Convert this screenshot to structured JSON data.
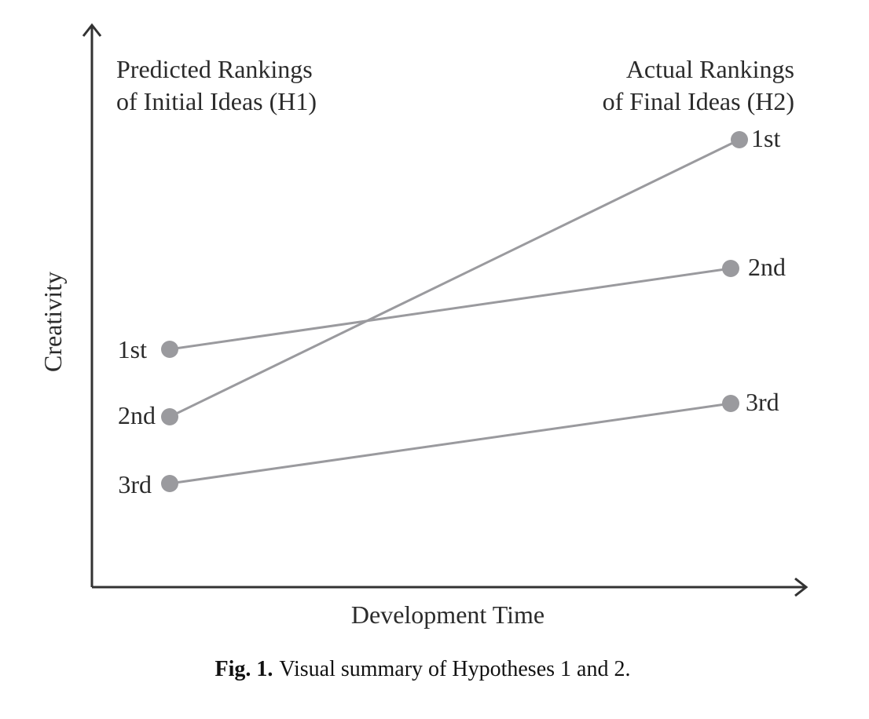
{
  "axes": {
    "y_label": "Creativity",
    "x_label": "Development Time"
  },
  "headers": {
    "left": [
      "Predicted Rankings",
      "of Initial Ideas (H1)"
    ],
    "right": [
      "Actual Rankings",
      "of Final Ideas (H2)"
    ]
  },
  "initial": [
    "1st",
    "2nd",
    "3rd"
  ],
  "final": [
    "1st",
    "2nd",
    "3rd"
  ],
  "caption": {
    "label": "Fig. 1.",
    "text": "Visual summary of Hypotheses 1 and 2."
  }
}
